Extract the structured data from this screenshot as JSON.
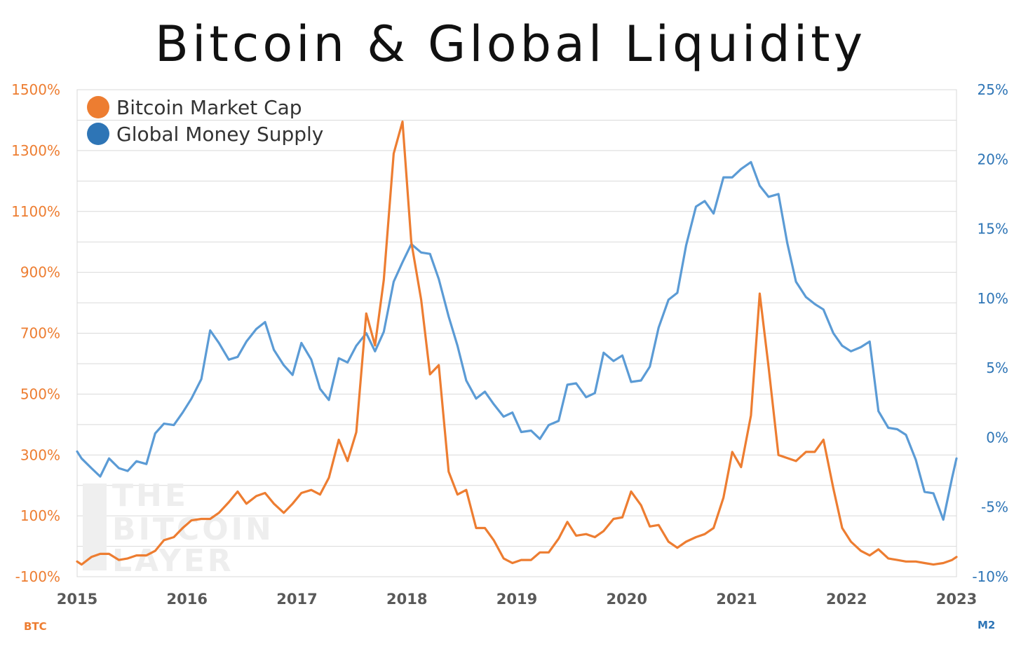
{
  "title": "Bitcoin & Global Liquidity",
  "watermark_text": [
    "THE",
    "BITCOIN",
    "LAYER"
  ],
  "colors": {
    "btc": "#ED7D31",
    "m2": "#5B9BD5",
    "left_axis_text": "#ED7D31",
    "right_axis_text": "#2E75B6",
    "grid": "#D9D9D9"
  },
  "chart_data": {
    "type": "line",
    "title": "Bitcoin & Global Liquidity",
    "x_tick_labels": [
      "2015",
      "2016",
      "2017",
      "2018",
      "2019",
      "2020",
      "2021",
      "2022",
      "2023"
    ],
    "xlim": [
      2015.0,
      2023.0
    ],
    "left_axis": {
      "caption": "BTC",
      "ylim": [
        -100,
        1500
      ],
      "tick_labels": [
        "1500%",
        "1300%",
        "1100%",
        "900%",
        "700%",
        "500%",
        "300%",
        "100%",
        "-100%"
      ],
      "tick_values": [
        1500,
        1300,
        1100,
        900,
        700,
        500,
        300,
        100,
        -100
      ]
    },
    "right_axis": {
      "caption": "M2",
      "ylim": [
        -10,
        25
      ],
      "tick_labels": [
        "25%",
        "20%",
        "15%",
        "10%",
        "5%",
        "0%",
        "-5%",
        "-10%"
      ],
      "tick_values": [
        25,
        20,
        15,
        10,
        5,
        0,
        -5,
        -10
      ]
    },
    "legend": {
      "position": "top-left"
    },
    "grid": true,
    "series": [
      {
        "name": "Bitcoin Market Cap",
        "axis": "left",
        "points": [
          [
            2015.0,
            -50
          ],
          [
            2015.04,
            -60
          ],
          [
            2015.13,
            -35
          ],
          [
            2015.21,
            -25
          ],
          [
            2015.29,
            -25
          ],
          [
            2015.38,
            -45
          ],
          [
            2015.46,
            -40
          ],
          [
            2015.54,
            -30
          ],
          [
            2015.63,
            -30
          ],
          [
            2015.71,
            -15
          ],
          [
            2015.79,
            20
          ],
          [
            2015.88,
            30
          ],
          [
            2015.96,
            60
          ],
          [
            2016.04,
            85
          ],
          [
            2016.13,
            90
          ],
          [
            2016.21,
            90
          ],
          [
            2016.29,
            110
          ],
          [
            2016.38,
            145
          ],
          [
            2016.46,
            180
          ],
          [
            2016.54,
            140
          ],
          [
            2016.63,
            165
          ],
          [
            2016.71,
            175
          ],
          [
            2016.79,
            140
          ],
          [
            2016.88,
            110
          ],
          [
            2016.96,
            140
          ],
          [
            2017.04,
            175
          ],
          [
            2017.13,
            185
          ],
          [
            2017.21,
            170
          ],
          [
            2017.29,
            225
          ],
          [
            2017.38,
            350
          ],
          [
            2017.46,
            280
          ],
          [
            2017.54,
            375
          ],
          [
            2017.63,
            765
          ],
          [
            2017.71,
            660
          ],
          [
            2017.79,
            875
          ],
          [
            2017.88,
            1290
          ],
          [
            2017.96,
            1395
          ],
          [
            2018.04,
            1000
          ],
          [
            2018.13,
            810
          ],
          [
            2018.21,
            565
          ],
          [
            2018.29,
            595
          ],
          [
            2018.38,
            245
          ],
          [
            2018.46,
            170
          ],
          [
            2018.54,
            185
          ],
          [
            2018.63,
            60
          ],
          [
            2018.71,
            60
          ],
          [
            2018.79,
            20
          ],
          [
            2018.88,
            -40
          ],
          [
            2018.96,
            -55
          ],
          [
            2019.04,
            -45
          ],
          [
            2019.13,
            -45
          ],
          [
            2019.21,
            -20
          ],
          [
            2019.29,
            -20
          ],
          [
            2019.38,
            25
          ],
          [
            2019.46,
            80
          ],
          [
            2019.54,
            35
          ],
          [
            2019.63,
            40
          ],
          [
            2019.71,
            30
          ],
          [
            2019.79,
            50
          ],
          [
            2019.88,
            90
          ],
          [
            2019.96,
            95
          ],
          [
            2020.04,
            180
          ],
          [
            2020.13,
            135
          ],
          [
            2020.21,
            65
          ],
          [
            2020.29,
            70
          ],
          [
            2020.38,
            15
          ],
          [
            2020.46,
            -5
          ],
          [
            2020.54,
            15
          ],
          [
            2020.63,
            30
          ],
          [
            2020.71,
            40
          ],
          [
            2020.79,
            60
          ],
          [
            2020.88,
            160
          ],
          [
            2020.96,
            310
          ],
          [
            2021.04,
            260
          ],
          [
            2021.13,
            430
          ],
          [
            2021.21,
            830
          ],
          [
            2021.29,
            590
          ],
          [
            2021.38,
            300
          ],
          [
            2021.46,
            290
          ],
          [
            2021.54,
            280
          ],
          [
            2021.63,
            310
          ],
          [
            2021.71,
            310
          ],
          [
            2021.79,
            350
          ],
          [
            2021.88,
            190
          ],
          [
            2021.96,
            60
          ],
          [
            2022.04,
            15
          ],
          [
            2022.13,
            -15
          ],
          [
            2022.21,
            -30
          ],
          [
            2022.29,
            -10
          ],
          [
            2022.38,
            -40
          ],
          [
            2022.46,
            -45
          ],
          [
            2022.54,
            -50
          ],
          [
            2022.63,
            -50
          ],
          [
            2022.71,
            -55
          ],
          [
            2022.79,
            -60
          ],
          [
            2022.88,
            -55
          ],
          [
            2022.96,
            -45
          ],
          [
            2023.0,
            -35
          ]
        ]
      },
      {
        "name": "Global Money Supply",
        "axis": "right",
        "points": [
          [
            2015.0,
            -1.0
          ],
          [
            2015.04,
            -1.5
          ],
          [
            2015.13,
            -2.2
          ],
          [
            2015.21,
            -2.8
          ],
          [
            2015.29,
            -1.5
          ],
          [
            2015.38,
            -2.2
          ],
          [
            2015.46,
            -2.4
          ],
          [
            2015.54,
            -1.7
          ],
          [
            2015.63,
            -1.9
          ],
          [
            2015.71,
            0.3
          ],
          [
            2015.79,
            1.0
          ],
          [
            2015.88,
            0.9
          ],
          [
            2015.96,
            1.8
          ],
          [
            2016.04,
            2.8
          ],
          [
            2016.13,
            4.2
          ],
          [
            2016.21,
            7.7
          ],
          [
            2016.29,
            6.8
          ],
          [
            2016.38,
            5.6
          ],
          [
            2016.46,
            5.8
          ],
          [
            2016.54,
            6.9
          ],
          [
            2016.63,
            7.8
          ],
          [
            2016.71,
            8.3
          ],
          [
            2016.79,
            6.3
          ],
          [
            2016.88,
            5.2
          ],
          [
            2016.96,
            4.5
          ],
          [
            2017.04,
            6.8
          ],
          [
            2017.13,
            5.6
          ],
          [
            2017.21,
            3.5
          ],
          [
            2017.29,
            2.7
          ],
          [
            2017.38,
            5.7
          ],
          [
            2017.46,
            5.4
          ],
          [
            2017.54,
            6.6
          ],
          [
            2017.63,
            7.5
          ],
          [
            2017.71,
            6.2
          ],
          [
            2017.79,
            7.6
          ],
          [
            2017.88,
            11.2
          ],
          [
            2017.96,
            12.6
          ],
          [
            2018.04,
            13.9
          ],
          [
            2018.13,
            13.3
          ],
          [
            2018.21,
            13.2
          ],
          [
            2018.29,
            11.4
          ],
          [
            2018.38,
            8.7
          ],
          [
            2018.46,
            6.6
          ],
          [
            2018.54,
            4.1
          ],
          [
            2018.63,
            2.8
          ],
          [
            2018.71,
            3.3
          ],
          [
            2018.79,
            2.4
          ],
          [
            2018.88,
            1.5
          ],
          [
            2018.96,
            1.8
          ],
          [
            2019.04,
            0.4
          ],
          [
            2019.13,
            0.5
          ],
          [
            2019.21,
            -0.1
          ],
          [
            2019.29,
            0.9
          ],
          [
            2019.38,
            1.2
          ],
          [
            2019.46,
            3.8
          ],
          [
            2019.54,
            3.9
          ],
          [
            2019.63,
            2.9
          ],
          [
            2019.71,
            3.2
          ],
          [
            2019.79,
            6.1
          ],
          [
            2019.88,
            5.5
          ],
          [
            2019.96,
            5.9
          ],
          [
            2020.04,
            4.0
          ],
          [
            2020.13,
            4.1
          ],
          [
            2020.21,
            5.1
          ],
          [
            2020.29,
            7.9
          ],
          [
            2020.38,
            9.9
          ],
          [
            2020.46,
            10.4
          ],
          [
            2020.54,
            13.8
          ],
          [
            2020.63,
            16.6
          ],
          [
            2020.71,
            17.0
          ],
          [
            2020.79,
            16.1
          ],
          [
            2020.88,
            18.7
          ],
          [
            2020.96,
            18.7
          ],
          [
            2021.04,
            19.3
          ],
          [
            2021.13,
            19.8
          ],
          [
            2021.21,
            18.1
          ],
          [
            2021.29,
            17.3
          ],
          [
            2021.38,
            17.5
          ],
          [
            2021.46,
            14.0
          ],
          [
            2021.54,
            11.2
          ],
          [
            2021.63,
            10.1
          ],
          [
            2021.71,
            9.6
          ],
          [
            2021.79,
            9.2
          ],
          [
            2021.88,
            7.5
          ],
          [
            2021.96,
            6.6
          ],
          [
            2022.04,
            6.2
          ],
          [
            2022.13,
            6.5
          ],
          [
            2022.21,
            6.9
          ],
          [
            2022.29,
            1.9
          ],
          [
            2022.38,
            0.7
          ],
          [
            2022.46,
            0.6
          ],
          [
            2022.54,
            0.2
          ],
          [
            2022.63,
            -1.6
          ],
          [
            2022.71,
            -3.9
          ],
          [
            2022.79,
            -4.0
          ],
          [
            2022.88,
            -5.9
          ],
          [
            2022.96,
            -2.9
          ],
          [
            2023.0,
            -1.5
          ]
        ]
      }
    ]
  }
}
